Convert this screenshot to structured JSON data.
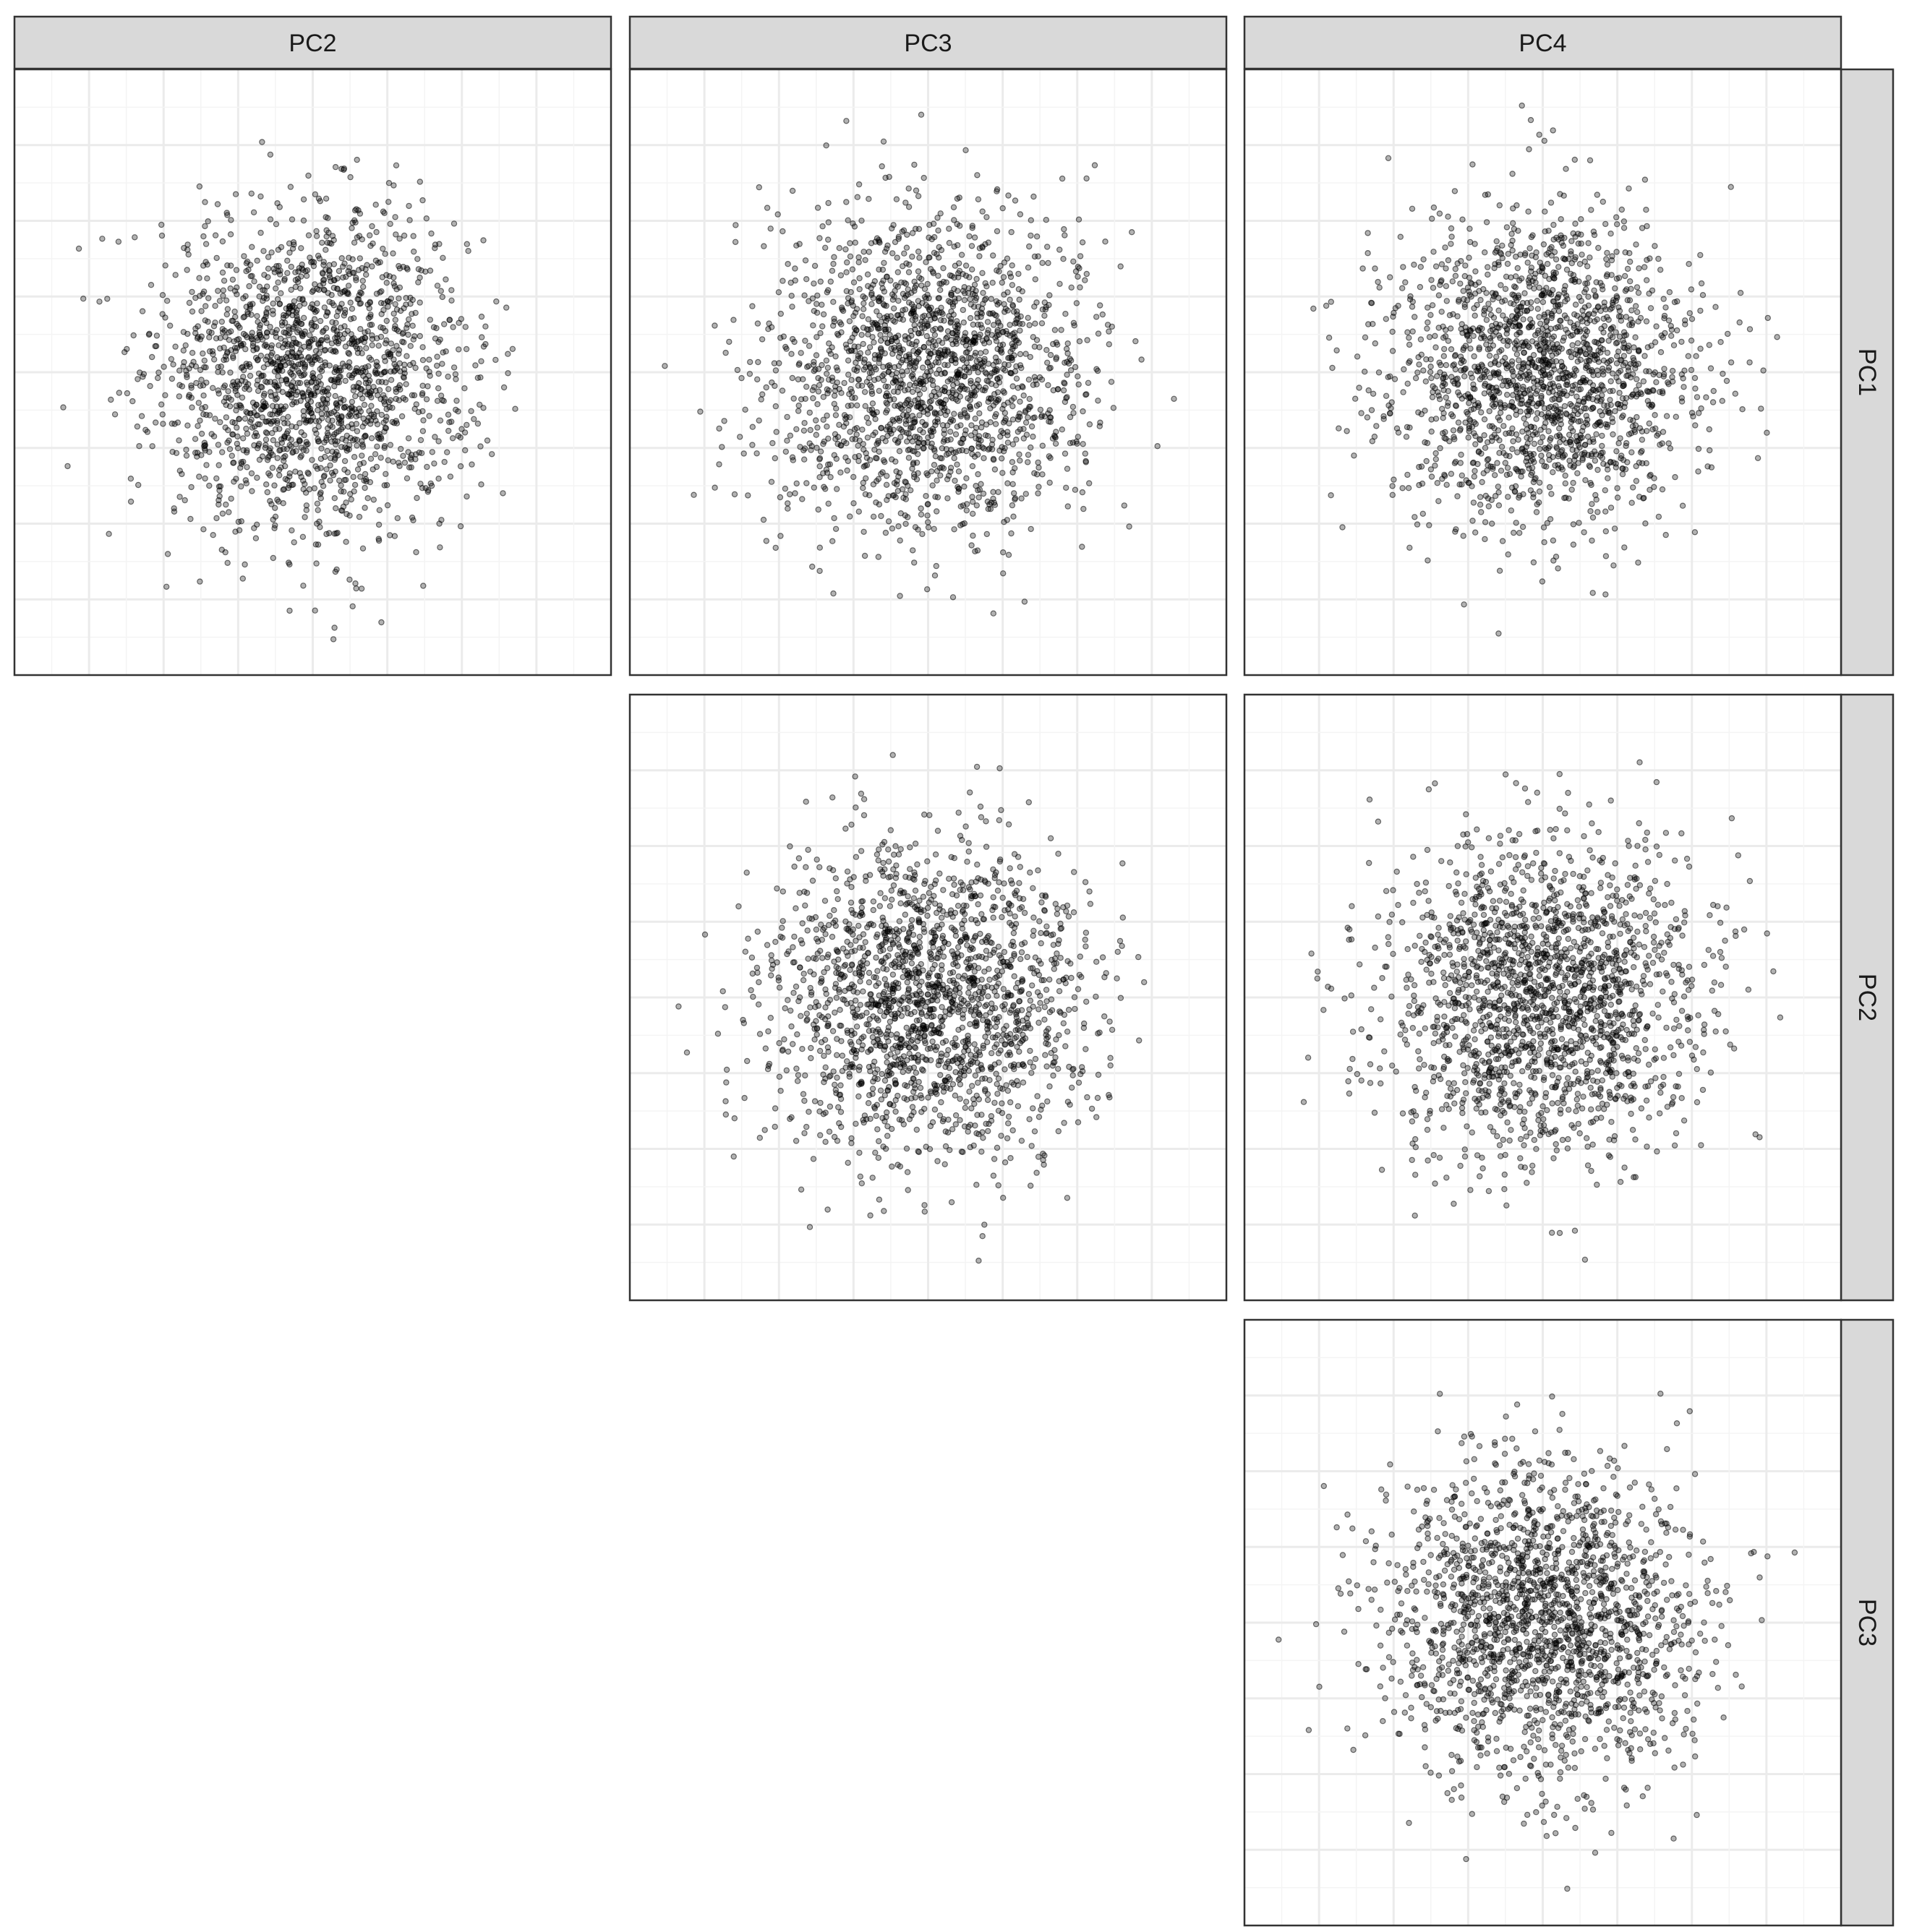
{
  "chart_data": {
    "type": "scatter",
    "layout": "pairs-matrix (upper triangle)",
    "column_labels": [
      "PC2",
      "PC3",
      "PC4"
    ],
    "row_labels": [
      "PC1",
      "PC2",
      "PC3"
    ],
    "grid": true,
    "axis_tick_labels_shown": false,
    "point_color": "#000000",
    "point_alpha": 0.3,
    "approx_points_per_panel": 1800,
    "panels": [
      {
        "x": "PC2",
        "y": "PC1",
        "range": [
          -4,
          4
        ],
        "distribution": "roughly circular cloud centered near 0"
      },
      {
        "x": "PC3",
        "y": "PC1",
        "range": [
          -4,
          4
        ],
        "distribution": "roughly circular cloud centered near 0"
      },
      {
        "x": "PC4",
        "y": "PC1",
        "range": [
          -4,
          4
        ],
        "distribution": "roughly circular cloud centered near 0"
      },
      {
        "x": "PC3",
        "y": "PC2",
        "range": [
          -4,
          4
        ],
        "distribution": "roughly circular cloud centered near 0"
      },
      {
        "x": "PC4",
        "y": "PC2",
        "range": [
          -4,
          4
        ],
        "distribution": "roughly circular cloud centered near 0"
      },
      {
        "x": "PC4",
        "y": "PC3",
        "range": [
          -4,
          4
        ],
        "distribution": "roughly circular cloud centered near 0"
      }
    ]
  }
}
